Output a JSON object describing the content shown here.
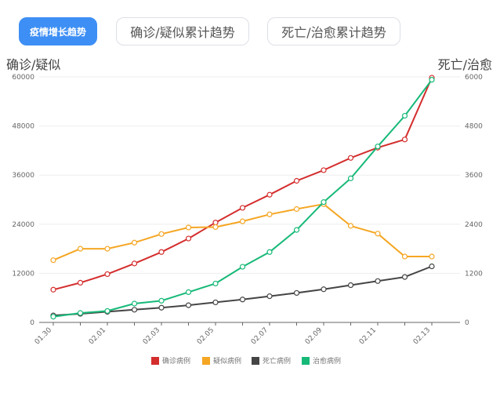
{
  "tabs": [
    {
      "label": "疫情增长趋势",
      "active": true
    },
    {
      "label": "确诊/疑似累计趋势",
      "active": false
    },
    {
      "label": "死亡/治愈累计趋势",
      "active": false
    }
  ],
  "chart_data": {
    "type": "line",
    "x": [
      "01.30",
      "01.31",
      "02.01",
      "02.02",
      "02.03",
      "02.04",
      "02.05",
      "02.06",
      "02.07",
      "02.08",
      "02.09",
      "02.10",
      "02.11",
      "02.12",
      "02.13"
    ],
    "x_tick_labels": [
      "01.30",
      "02.01",
      "02.03",
      "02.05",
      "02.07",
      "02.09",
      "02.11",
      "02.13"
    ],
    "y_left": {
      "label": "确诊/疑似",
      "ylim": [
        0,
        60000
      ],
      "ticks": [
        0,
        12000,
        24000,
        36000,
        48000,
        60000
      ]
    },
    "y_right": {
      "label": "死亡/治愈",
      "ylim": [
        0,
        6000
      ],
      "ticks": [
        0,
        1200,
        2400,
        3600,
        4800,
        6000
      ]
    },
    "grid": true,
    "legend_position": "bottom",
    "series": [
      {
        "name": "确诊病例",
        "axis": "left",
        "color": "#d42d2d",
        "values": [
          8000,
          9700,
          11800,
          14400,
          17200,
          20500,
          24400,
          28000,
          31200,
          34600,
          37200,
          40200,
          42700,
          44700,
          59800
        ]
      },
      {
        "name": "疑似病例",
        "axis": "left",
        "color": "#f5a623",
        "values": [
          15200,
          18000,
          18000,
          19500,
          21600,
          23200,
          23300,
          24700,
          26400,
          27700,
          28900,
          23600,
          21700,
          16100,
          16100
        ]
      },
      {
        "name": "死亡病例",
        "axis": "right",
        "color": "#454545",
        "values": [
          170,
          210,
          260,
          310,
          360,
          420,
          490,
          560,
          640,
          720,
          810,
          910,
          1010,
          1110,
          1370
        ]
      },
      {
        "name": "治愈病例",
        "axis": "right",
        "color": "#17b978",
        "values": [
          140,
          230,
          280,
          460,
          530,
          740,
          950,
          1360,
          1720,
          2260,
          2940,
          3520,
          4300,
          5050,
          5930
        ]
      }
    ]
  }
}
